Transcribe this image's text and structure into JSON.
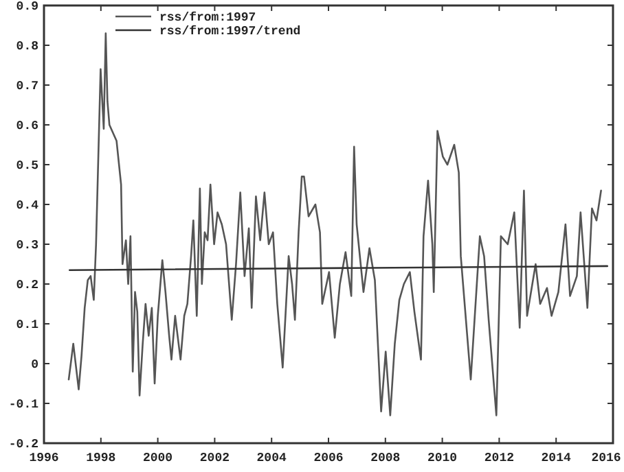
{
  "chart_data": {
    "type": "line",
    "xlim": [
      1996,
      2016
    ],
    "ylim": [
      -0.2,
      0.9
    ],
    "xticks": [
      1996,
      1998,
      2000,
      2002,
      2004,
      2006,
      2008,
      2010,
      2012,
      2014,
      2016
    ],
    "yticks": [
      -0.2,
      -0.1,
      0,
      0.1,
      0.2,
      0.3,
      0.4,
      0.5,
      0.6,
      0.7,
      0.8,
      0.9
    ],
    "grid": false,
    "legend": "top left",
    "marker": "none",
    "line_style": "solid",
    "series": [
      {
        "name": "rss/from:1997",
        "color": "#555555",
        "x": [
          1996.87,
          1997.03,
          1997.22,
          1997.32,
          1997.43,
          1997.54,
          1997.64,
          1997.75,
          1997.83,
          1997.99,
          1998.1,
          1998.17,
          1998.23,
          1998.3,
          1998.55,
          1998.71,
          1998.76,
          1998.88,
          1998.96,
          1999.04,
          1999.12,
          1999.2,
          1999.28,
          1999.36,
          1999.47,
          1999.57,
          1999.68,
          1999.79,
          1999.89,
          2000.0,
          2000.16,
          2000.27,
          2000.4,
          2000.48,
          2000.61,
          2000.8,
          2000.93,
          2001.04,
          2001.17,
          2001.25,
          2001.37,
          2001.48,
          2001.55,
          2001.65,
          2001.75,
          2001.85,
          2001.98,
          2002.1,
          2002.25,
          2002.4,
          2002.6,
          2002.75,
          2002.9,
          2003.05,
          2003.2,
          2003.3,
          2003.45,
          2003.6,
          2003.75,
          2003.9,
          2004.05,
          2004.2,
          2004.39,
          2004.6,
          2004.72,
          2004.82,
          2004.95,
          2005.06,
          2005.14,
          2005.3,
          2005.54,
          2005.7,
          2005.78,
          2006.02,
          2006.22,
          2006.4,
          2006.6,
          2006.8,
          2006.9,
          2006.99,
          2007.23,
          2007.44,
          2007.63,
          2007.85,
          2008.01,
          2008.17,
          2008.33,
          2008.49,
          2008.65,
          2008.86,
          2009.02,
          2009.25,
          2009.34,
          2009.5,
          2009.65,
          2009.7,
          2009.83,
          2010.02,
          2010.18,
          2010.42,
          2010.58,
          2010.65,
          2011.0,
          2011.32,
          2011.47,
          2011.63,
          2011.9,
          2012.06,
          2012.3,
          2012.53,
          2012.72,
          2012.87,
          2012.98,
          2013.28,
          2013.44,
          2013.68,
          2013.84,
          2014.08,
          2014.33,
          2014.49,
          2014.73,
          2014.86,
          2015.1,
          2015.26,
          2015.42,
          2015.58
        ],
        "values": [
          -0.04,
          0.05,
          -0.065,
          0.02,
          0.14,
          0.21,
          0.22,
          0.16,
          0.3,
          0.74,
          0.59,
          0.83,
          0.66,
          0.6,
          0.56,
          0.45,
          0.25,
          0.31,
          0.2,
          0.32,
          -0.02,
          0.18,
          0.13,
          -0.08,
          0.05,
          0.15,
          0.07,
          0.14,
          -0.05,
          0.12,
          0.26,
          0.18,
          0.07,
          0.01,
          0.12,
          0.01,
          0.12,
          0.15,
          0.27,
          0.36,
          0.12,
          0.44,
          0.2,
          0.33,
          0.31,
          0.45,
          0.3,
          0.38,
          0.35,
          0.3,
          0.11,
          0.25,
          0.43,
          0.22,
          0.34,
          0.14,
          0.42,
          0.31,
          0.43,
          0.3,
          0.33,
          0.15,
          -0.01,
          0.27,
          0.2,
          0.11,
          0.33,
          0.47,
          0.47,
          0.37,
          0.4,
          0.33,
          0.15,
          0.23,
          0.065,
          0.2,
          0.28,
          0.17,
          0.545,
          0.35,
          0.18,
          0.29,
          0.21,
          -0.12,
          0.03,
          -0.13,
          0.05,
          0.16,
          0.2,
          0.23,
          0.13,
          0.01,
          0.32,
          0.46,
          0.3,
          0.18,
          0.585,
          0.52,
          0.5,
          0.55,
          0.48,
          0.27,
          -0.04,
          0.32,
          0.27,
          0.11,
          -0.13,
          0.32,
          0.3,
          0.38,
          0.09,
          0.435,
          0.12,
          0.25,
          0.15,
          0.19,
          0.12,
          0.18,
          0.35,
          0.17,
          0.22,
          0.38,
          0.14,
          0.39,
          0.36,
          0.435
        ]
      },
      {
        "name": "rss/from:1997/trend",
        "color": "#333333",
        "x": [
          1996.9,
          2015.8
        ],
        "values": [
          0.235,
          0.245
        ]
      }
    ]
  }
}
